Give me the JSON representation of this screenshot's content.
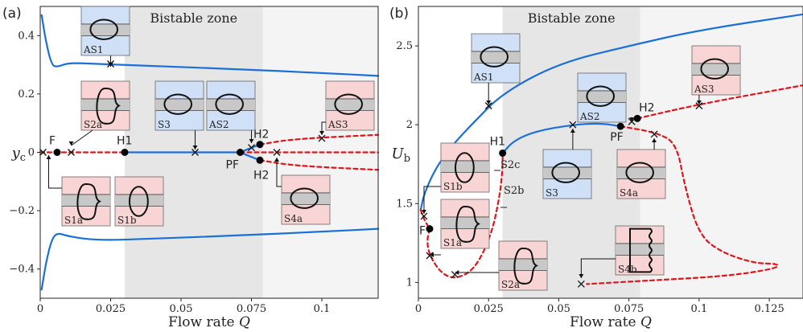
{
  "colors": {
    "stable": "#1a6fd8",
    "unstable": "#e0151b",
    "bistable_bg": "#e6e6e6",
    "right_bg": "#f4f4f4",
    "stable_inset": "#cfe0f7",
    "unstable_inset": "#f9d4d4"
  },
  "chart_data": [
    {
      "panel": "(a)",
      "type": "line",
      "xlabel": "Flow rate Q",
      "ylabel": "y_c",
      "xlim": [
        0,
        0.12
      ],
      "ylim": [
        -0.5,
        0.5
      ],
      "xticks": [
        0,
        0.025,
        0.05,
        0.075,
        0.1
      ],
      "xtick_labels": [
        "0",
        "0.025",
        "0.05",
        "0.075",
        "0.1"
      ],
      "yticks": [
        -0.4,
        -0.2,
        0,
        0.2,
        0.4
      ],
      "ytick_labels": [
        "−0.4",
        "−0.2",
        "0",
        "0.2",
        "0.4"
      ],
      "zone_label": "Bistable zone",
      "bistable_range": [
        0.03,
        0.079
      ],
      "series": [
        {
          "style": "stable",
          "points": [
            [
              0.0005,
              0.47
            ],
            [
              0.002,
              0.38
            ],
            [
              0.004,
              0.3
            ],
            [
              0.006,
              0.292
            ],
            [
              0.01,
              0.307
            ],
            [
              0.02,
              0.303
            ],
            [
              0.04,
              0.296
            ],
            [
              0.07,
              0.285
            ],
            [
              0.1,
              0.272
            ],
            [
              0.12,
              0.262
            ]
          ]
        },
        {
          "style": "stable",
          "points": [
            [
              0.0005,
              -0.47
            ],
            [
              0.002,
              -0.38
            ],
            [
              0.004,
              -0.3
            ],
            [
              0.006,
              -0.275
            ],
            [
              0.01,
              -0.288
            ],
            [
              0.02,
              -0.302
            ],
            [
              0.04,
              -0.296
            ],
            [
              0.07,
              -0.285
            ],
            [
              0.1,
              -0.272
            ],
            [
              0.12,
              -0.262
            ]
          ]
        },
        {
          "style": "stable",
          "points": [
            [
              0.03,
              0
            ],
            [
              0.071,
              0
            ]
          ]
        },
        {
          "style": "stable",
          "points": [
            [
              0.071,
              0
            ],
            [
              0.074,
              0.012
            ],
            [
              0.078,
              0.027
            ]
          ]
        },
        {
          "style": "stable",
          "points": [
            [
              0.071,
              0
            ],
            [
              0.074,
              -0.012
            ],
            [
              0.078,
              -0.027
            ]
          ]
        },
        {
          "style": "unstable",
          "points": [
            [
              0.0,
              0
            ],
            [
              0.03,
              0
            ]
          ]
        },
        {
          "style": "unstable",
          "points": [
            [
              0.071,
              0
            ],
            [
              0.12,
              0
            ]
          ]
        },
        {
          "style": "unstable",
          "points": [
            [
              0.078,
              0.027
            ],
            [
              0.09,
              0.046
            ],
            [
              0.12,
              0.06
            ]
          ]
        },
        {
          "style": "unstable",
          "points": [
            [
              0.078,
              -0.027
            ],
            [
              0.09,
              -0.046
            ],
            [
              0.12,
              -0.06
            ]
          ]
        }
      ],
      "points": [
        {
          "label": "F",
          "x": 0.006,
          "y": 0
        },
        {
          "label": "H1",
          "x": 0.03,
          "y": 0
        },
        {
          "label": "PF",
          "x": 0.071,
          "y": 0
        },
        {
          "label": "H2",
          "x": 0.078,
          "y": 0.027
        },
        {
          "label": "H2",
          "x": 0.078,
          "y": -0.027
        }
      ],
      "crosses": [
        [
          0.025,
          0.303
        ],
        [
          0.001,
          0
        ],
        [
          0.011,
          0
        ],
        [
          0.055,
          0
        ],
        [
          0.075,
          0.016
        ],
        [
          0.084,
          0
        ],
        [
          0.1,
          0.048
        ]
      ],
      "insets": [
        "AS1",
        "S2a",
        "S3",
        "AS2",
        "AS3",
        "S1a",
        "S1b",
        "S4a"
      ]
    },
    {
      "panel": "(b)",
      "type": "line",
      "xlabel": "Flow rate Q",
      "ylabel": "U_b",
      "xlim": [
        0,
        0.137
      ],
      "ylim": [
        0.9,
        2.75
      ],
      "xticks": [
        0,
        0.025,
        0.05,
        0.075,
        0.1,
        0.125
      ],
      "xtick_labels": [
        "0",
        "0.025",
        "0.05",
        "0.075",
        "0.1",
        "0.125"
      ],
      "yticks": [
        1,
        1.5,
        2,
        2.5
      ],
      "ytick_labels": [
        "1",
        "1.5",
        "2",
        "2.5"
      ],
      "zone_label": "Bistable zone",
      "bistable_range": [
        0.03,
        0.079
      ],
      "series": [
        {
          "style": "stable",
          "points": [
            [
              0.0008,
              1.46
            ],
            [
              0.002,
              1.56
            ],
            [
              0.006,
              1.72
            ],
            [
              0.012,
              1.87
            ],
            [
              0.02,
              2.02
            ],
            [
              0.03,
              2.2
            ],
            [
              0.05,
              2.39
            ],
            [
              0.075,
              2.5
            ],
            [
              0.1,
              2.6
            ],
            [
              0.137,
              2.7
            ]
          ]
        },
        {
          "style": "stable",
          "points": [
            [
              0.03,
              1.82
            ],
            [
              0.034,
              1.9
            ],
            [
              0.042,
              1.96
            ],
            [
              0.055,
              2.0
            ],
            [
              0.065,
              2.01
            ],
            [
              0.072,
              1.99
            ]
          ]
        },
        {
          "style": "unstable",
          "points": [
            [
              0.0008,
              1.46
            ],
            [
              0.002,
              1.4
            ],
            [
              0.004,
              1.34
            ]
          ]
        },
        {
          "style": "unstable",
          "points": [
            [
              0.004,
              1.34
            ],
            [
              0.003,
              1.26
            ],
            [
              0.004,
              1.17
            ],
            [
              0.008,
              1.06
            ],
            [
              0.013,
              1.02
            ],
            [
              0.02,
              1.08
            ],
            [
              0.026,
              1.3
            ],
            [
              0.029,
              1.55
            ],
            [
              0.03,
              1.72
            ],
            [
              0.03,
              1.82
            ]
          ]
        },
        {
          "style": "unstable",
          "points": [
            [
              0.072,
              1.99
            ],
            [
              0.085,
              1.95
            ],
            [
              0.092,
              1.88
            ],
            [
              0.095,
              1.6
            ],
            [
              0.1,
              1.3
            ],
            [
              0.108,
              1.19
            ],
            [
              0.12,
              1.12
            ],
            [
              0.128,
              1.12
            ],
            [
              0.128,
              1.09
            ],
            [
              0.11,
              1.04
            ],
            [
              0.08,
              1.01
            ],
            [
              0.06,
              0.99
            ]
          ]
        },
        {
          "style": "unstable",
          "points": [
            [
              0.078,
              2.04
            ],
            [
              0.1,
              2.13
            ],
            [
              0.137,
              2.25
            ]
          ]
        }
      ],
      "points": [
        {
          "label": "F",
          "x": 0.004,
          "y": 1.34
        },
        {
          "label": "H1",
          "x": 0.03,
          "y": 1.82
        },
        {
          "label": "PF",
          "x": 0.072,
          "y": 1.99
        },
        {
          "label": "H2",
          "x": 0.078,
          "y": 2.04
        }
      ],
      "crosses": [
        [
          0.025,
          2.12
        ],
        [
          0.002,
          1.42
        ],
        [
          0.004,
          1.17
        ],
        [
          0.013,
          1.05
        ],
        [
          0.055,
          2.0
        ],
        [
          0.076,
          2.02
        ],
        [
          0.084,
          1.94
        ],
        [
          0.1,
          2.12
        ],
        [
          0.058,
          0.99
        ]
      ],
      "insets": [
        "AS1",
        "AS2",
        "AS3",
        "S1b",
        "S1a",
        "S2a",
        "S3",
        "S4a",
        "S4b"
      ],
      "extra_labels": [
        "S2c",
        "S2b"
      ]
    }
  ]
}
